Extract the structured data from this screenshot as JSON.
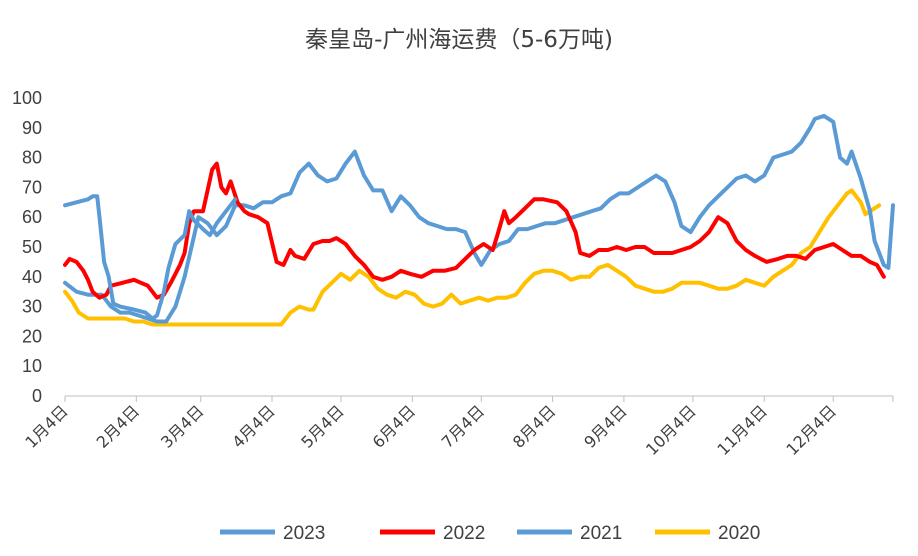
{
  "chart_data": {
    "type": "line",
    "title": "秦皇岛-广州海运费（5-6万吨)",
    "xlabel": "",
    "ylabel": "",
    "ylim": [
      0,
      100
    ],
    "yticks": [
      0,
      10,
      20,
      30,
      40,
      50,
      60,
      70,
      80,
      90,
      100
    ],
    "x_domain_days": [
      0,
      360
    ],
    "x_ticks": [
      {
        "label": "1月4日",
        "day": 0
      },
      {
        "label": "2月4日",
        "day": 31
      },
      {
        "label": "3月4日",
        "day": 59
      },
      {
        "label": "4月4日",
        "day": 90
      },
      {
        "label": "5月4日",
        "day": 120
      },
      {
        "label": "6月4日",
        "day": 151
      },
      {
        "label": "7月4日",
        "day": 181
      },
      {
        "label": "8月4日",
        "day": 212
      },
      {
        "label": "9月4日",
        "day": 243
      },
      {
        "label": "10月4日",
        "day": 273
      },
      {
        "label": "11月4日",
        "day": 304
      },
      {
        "label": "12月4日",
        "day": 334
      }
    ],
    "grid": false,
    "legend_position": "bottom",
    "series": [
      {
        "name": "2023",
        "color": "#5B9BD5",
        "points": [
          [
            0,
            64
          ],
          [
            5,
            65
          ],
          [
            10,
            66
          ],
          [
            12,
            67
          ],
          [
            14,
            67
          ],
          [
            15,
            60
          ],
          [
            17,
            45
          ],
          [
            19,
            40
          ],
          [
            21,
            31
          ],
          [
            24,
            30
          ],
          [
            30,
            29
          ],
          [
            35,
            28
          ],
          [
            38,
            26
          ],
          [
            40,
            27
          ],
          [
            43,
            35
          ],
          [
            45,
            43
          ],
          [
            48,
            51
          ],
          [
            52,
            54
          ],
          [
            54,
            62
          ],
          [
            56,
            59
          ],
          [
            60,
            56
          ],
          [
            63,
            54
          ],
          [
            66,
            58
          ],
          [
            70,
            62
          ],
          [
            74,
            66
          ]
        ]
      },
      {
        "name": "2022",
        "color": "#FF0000",
        "points": [
          [
            0,
            44
          ],
          [
            2,
            46
          ],
          [
            5,
            45
          ],
          [
            8,
            42
          ],
          [
            10,
            39
          ],
          [
            12,
            35
          ],
          [
            15,
            33
          ],
          [
            18,
            34
          ],
          [
            20,
            37
          ],
          [
            25,
            38
          ],
          [
            30,
            39
          ],
          [
            33,
            38
          ],
          [
            36,
            37
          ],
          [
            40,
            33
          ],
          [
            43,
            34
          ],
          [
            46,
            38
          ],
          [
            50,
            44
          ],
          [
            52,
            48
          ],
          [
            54,
            58
          ],
          [
            56,
            62
          ],
          [
            60,
            62
          ],
          [
            64,
            76
          ],
          [
            66,
            78
          ],
          [
            68,
            70
          ],
          [
            70,
            68
          ],
          [
            72,
            72
          ],
          [
            75,
            65
          ],
          [
            78,
            62
          ],
          [
            80,
            61
          ],
          [
            84,
            60
          ],
          [
            88,
            58
          ],
          [
            92,
            45
          ],
          [
            95,
            44
          ],
          [
            98,
            49
          ],
          [
            100,
            47
          ],
          [
            104,
            46
          ],
          [
            108,
            51
          ],
          [
            112,
            52
          ],
          [
            115,
            52
          ],
          [
            118,
            53
          ],
          [
            122,
            51
          ],
          [
            126,
            47
          ],
          [
            130,
            44
          ],
          [
            134,
            40
          ],
          [
            138,
            39
          ],
          [
            142,
            40
          ],
          [
            146,
            42
          ],
          [
            150,
            41
          ],
          [
            155,
            40
          ],
          [
            160,
            42
          ],
          [
            165,
            42
          ],
          [
            170,
            43
          ],
          [
            174,
            46
          ],
          [
            178,
            49
          ],
          [
            182,
            51
          ],
          [
            186,
            49
          ],
          [
            188,
            54
          ],
          [
            191,
            62
          ],
          [
            193,
            58
          ],
          [
            196,
            60
          ],
          [
            200,
            63
          ],
          [
            204,
            66
          ],
          [
            208,
            66
          ],
          [
            214,
            65
          ],
          [
            218,
            62
          ],
          [
            222,
            55
          ],
          [
            224,
            48
          ],
          [
            228,
            47
          ],
          [
            232,
            49
          ],
          [
            236,
            49
          ],
          [
            240,
            50
          ],
          [
            244,
            49
          ],
          [
            248,
            50
          ],
          [
            252,
            50
          ],
          [
            256,
            48
          ],
          [
            260,
            48
          ],
          [
            264,
            48
          ],
          [
            268,
            49
          ],
          [
            272,
            50
          ],
          [
            276,
            52
          ],
          [
            280,
            55
          ],
          [
            284,
            60
          ],
          [
            288,
            58
          ],
          [
            292,
            52
          ],
          [
            296,
            49
          ],
          [
            300,
            47
          ],
          [
            305,
            45
          ],
          [
            310,
            46
          ],
          [
            314,
            47
          ],
          [
            318,
            47
          ],
          [
            322,
            46
          ],
          [
            326,
            49
          ],
          [
            330,
            50
          ],
          [
            334,
            51
          ],
          [
            338,
            49
          ],
          [
            342,
            47
          ],
          [
            346,
            47
          ],
          [
            350,
            45
          ],
          [
            353,
            44
          ],
          [
            356,
            40
          ]
        ]
      },
      {
        "name": "2021",
        "color": "#5B9BD5",
        "points": [
          [
            0,
            38
          ],
          [
            5,
            35
          ],
          [
            10,
            34
          ],
          [
            11,
            34
          ],
          [
            12,
            34
          ],
          [
            16,
            34
          ],
          [
            20,
            30
          ],
          [
            24,
            28
          ],
          [
            28,
            28
          ],
          [
            32,
            27
          ],
          [
            36,
            26
          ],
          [
            40,
            25
          ],
          [
            44,
            25
          ],
          [
            48,
            30
          ],
          [
            52,
            40
          ],
          [
            55,
            50
          ],
          [
            58,
            60
          ],
          [
            62,
            58
          ],
          [
            66,
            54
          ],
          [
            70,
            57
          ],
          [
            74,
            64
          ],
          [
            78,
            64
          ],
          [
            82,
            63
          ],
          [
            86,
            65
          ],
          [
            90,
            65
          ],
          [
            94,
            67
          ],
          [
            98,
            68
          ],
          [
            102,
            75
          ],
          [
            106,
            78
          ],
          [
            110,
            74
          ],
          [
            114,
            72
          ],
          [
            118,
            73
          ],
          [
            122,
            78
          ],
          [
            126,
            82
          ],
          [
            130,
            74
          ],
          [
            134,
            69
          ],
          [
            138,
            69
          ],
          [
            142,
            62
          ],
          [
            146,
            67
          ],
          [
            150,
            64
          ],
          [
            154,
            60
          ],
          [
            158,
            58
          ],
          [
            162,
            57
          ],
          [
            166,
            56
          ],
          [
            170,
            56
          ],
          [
            174,
            55
          ],
          [
            178,
            48
          ],
          [
            181,
            44
          ],
          [
            185,
            49
          ],
          [
            189,
            51
          ],
          [
            193,
            52
          ],
          [
            197,
            56
          ],
          [
            201,
            56
          ],
          [
            205,
            57
          ],
          [
            209,
            58
          ],
          [
            213,
            58
          ],
          [
            217,
            59
          ],
          [
            221,
            60
          ],
          [
            225,
            61
          ],
          [
            229,
            62
          ],
          [
            233,
            63
          ],
          [
            237,
            66
          ],
          [
            241,
            68
          ],
          [
            245,
            68
          ],
          [
            249,
            70
          ],
          [
            253,
            72
          ],
          [
            257,
            74
          ],
          [
            261,
            72
          ],
          [
            265,
            65
          ],
          [
            268,
            57
          ],
          [
            272,
            55
          ],
          [
            276,
            60
          ],
          [
            280,
            64
          ],
          [
            284,
            67
          ],
          [
            288,
            70
          ],
          [
            292,
            73
          ],
          [
            296,
            74
          ],
          [
            300,
            72
          ],
          [
            304,
            74
          ],
          [
            308,
            80
          ],
          [
            312,
            81
          ],
          [
            316,
            82
          ],
          [
            320,
            85
          ],
          [
            324,
            90
          ],
          [
            326,
            93
          ],
          [
            330,
            94
          ],
          [
            334,
            92
          ],
          [
            337,
            80
          ],
          [
            340,
            78
          ],
          [
            342,
            82
          ],
          [
            346,
            73
          ],
          [
            350,
            62
          ],
          [
            352,
            52
          ],
          [
            354,
            48
          ],
          [
            356,
            44
          ],
          [
            358,
            43
          ],
          [
            360,
            64
          ]
        ]
      },
      {
        "name": "2020",
        "color": "#FFC000",
        "points": [
          [
            0,
            35
          ],
          [
            3,
            32
          ],
          [
            6,
            28
          ],
          [
            10,
            26
          ],
          [
            14,
            26
          ],
          [
            18,
            26
          ],
          [
            22,
            26
          ],
          [
            26,
            26
          ],
          [
            30,
            25
          ],
          [
            34,
            25
          ],
          [
            38,
            24
          ],
          [
            42,
            24
          ],
          [
            46,
            24
          ],
          [
            50,
            24
          ],
          [
            54,
            24
          ],
          [
            58,
            24
          ],
          [
            62,
            24
          ],
          [
            66,
            24
          ],
          [
            70,
            24
          ],
          [
            74,
            24
          ],
          [
            78,
            24
          ],
          [
            82,
            24
          ],
          [
            86,
            24
          ],
          [
            90,
            24
          ],
          [
            94,
            24
          ],
          [
            98,
            28
          ],
          [
            102,
            30
          ],
          [
            106,
            29
          ],
          [
            108,
            29
          ],
          [
            112,
            35
          ],
          [
            116,
            38
          ],
          [
            120,
            41
          ],
          [
            124,
            39
          ],
          [
            128,
            42
          ],
          [
            132,
            40
          ],
          [
            136,
            36
          ],
          [
            140,
            34
          ],
          [
            144,
            33
          ],
          [
            148,
            35
          ],
          [
            152,
            34
          ],
          [
            156,
            31
          ],
          [
            160,
            30
          ],
          [
            164,
            31
          ],
          [
            168,
            34
          ],
          [
            172,
            31
          ],
          [
            176,
            32
          ],
          [
            180,
            33
          ],
          [
            184,
            32
          ],
          [
            188,
            33
          ],
          [
            192,
            33
          ],
          [
            196,
            34
          ],
          [
            200,
            38
          ],
          [
            204,
            41
          ],
          [
            208,
            42
          ],
          [
            212,
            42
          ],
          [
            216,
            41
          ],
          [
            220,
            39
          ],
          [
            224,
            40
          ],
          [
            228,
            40
          ],
          [
            232,
            43
          ],
          [
            236,
            44
          ],
          [
            240,
            42
          ],
          [
            244,
            40
          ],
          [
            248,
            37
          ],
          [
            252,
            36
          ],
          [
            256,
            35
          ],
          [
            260,
            35
          ],
          [
            264,
            36
          ],
          [
            268,
            38
          ],
          [
            272,
            38
          ],
          [
            276,
            38
          ],
          [
            280,
            37
          ],
          [
            284,
            36
          ],
          [
            288,
            36
          ],
          [
            292,
            37
          ],
          [
            296,
            39
          ],
          [
            300,
            38
          ],
          [
            304,
            37
          ],
          [
            308,
            40
          ],
          [
            312,
            42
          ],
          [
            316,
            44
          ],
          [
            320,
            48
          ],
          [
            324,
            50
          ],
          [
            328,
            55
          ],
          [
            332,
            60
          ],
          [
            336,
            64
          ],
          [
            340,
            68
          ],
          [
            342,
            69
          ],
          [
            346,
            65
          ],
          [
            348,
            61
          ],
          [
            350,
            62
          ],
          [
            354,
            64
          ]
        ]
      }
    ]
  }
}
